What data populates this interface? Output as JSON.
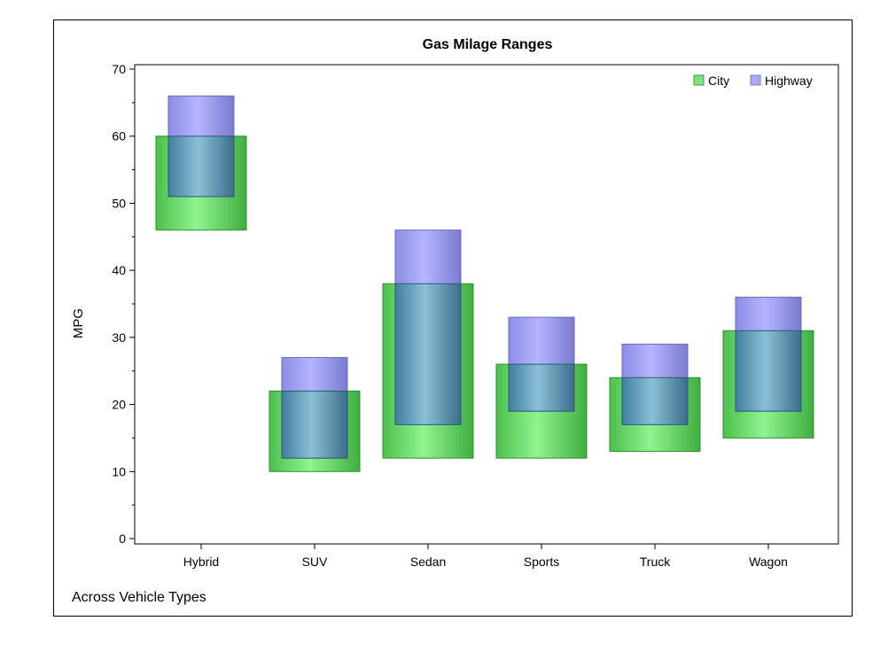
{
  "chart_data": {
    "type": "range-bar",
    "title": "Gas Milage Ranges",
    "ylabel": "MPG",
    "xlabel": "",
    "footnote": "Across Vehicle Types",
    "categories": [
      "Hybrid",
      "SUV",
      "Sedan",
      "Sports",
      "Truck",
      "Wagon"
    ],
    "ylim": [
      0,
      70
    ],
    "yticks": [
      0,
      10,
      20,
      30,
      40,
      50,
      60,
      70
    ],
    "series": [
      {
        "name": "City",
        "color": "#5fd35f",
        "low": [
          46,
          10,
          12,
          12,
          13,
          15
        ],
        "high": [
          60,
          22,
          38,
          26,
          24,
          31
        ]
      },
      {
        "name": "Highway",
        "color": "#9d9df5",
        "low": [
          51,
          12,
          17,
          19,
          17,
          19
        ],
        "high": [
          66,
          27,
          46,
          33,
          29,
          36
        ]
      }
    ],
    "legend": [
      "City",
      "Highway"
    ],
    "legend_position": "top-right"
  }
}
